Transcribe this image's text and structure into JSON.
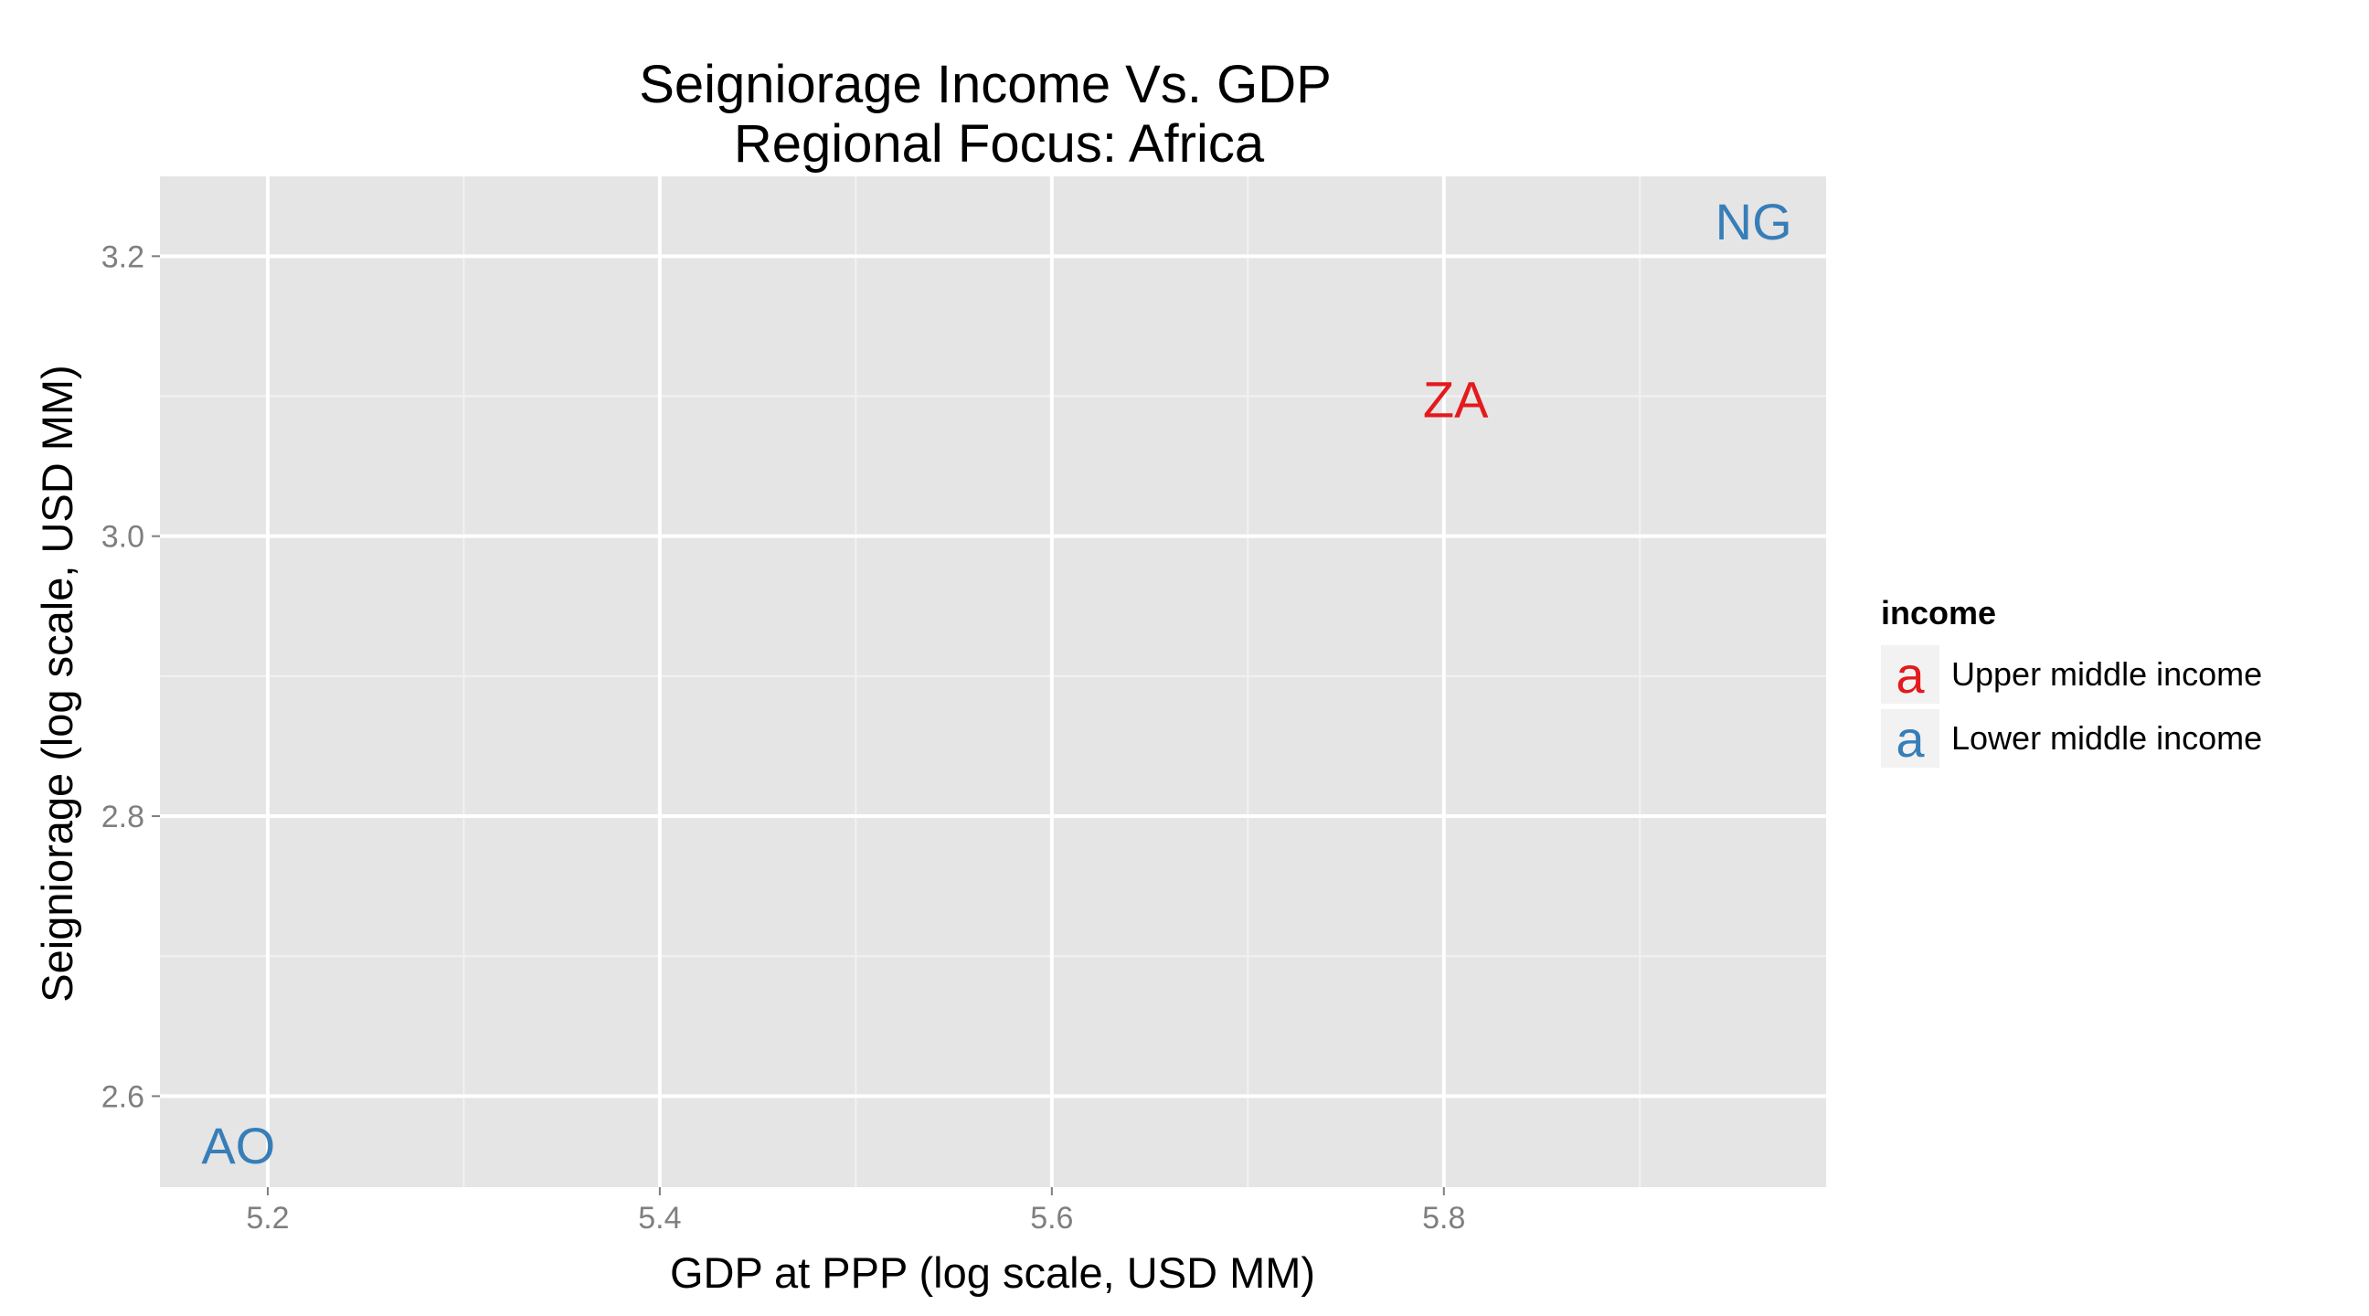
{
  "chart_data": {
    "type": "scatter",
    "title": "Seigniorage Income Vs. GDP",
    "subtitle": "Regional Focus: Africa",
    "xlabel": "GDP at PPP (log scale, USD MM)",
    "ylabel": "Seigniorage (log scale, USD MM)",
    "xlim": [
      5.145,
      5.995
    ],
    "ylim": [
      2.535,
      3.257
    ],
    "xticks": [
      "5.2",
      "5.4",
      "5.6",
      "5.8"
    ],
    "yticks": [
      "2.6",
      "2.8",
      "3.0",
      "3.2"
    ],
    "grid": true,
    "legend_position": "right",
    "legend": {
      "title": "income",
      "glyph": "a",
      "entries": [
        {
          "label": "Upper middle income",
          "color": "#e41a1c"
        },
        {
          "label": "Lower middle income",
          "color": "#377eb8"
        }
      ]
    },
    "points": [
      {
        "label": "AO",
        "x": 5.185,
        "y": 2.565,
        "group": "Lower middle income"
      },
      {
        "label": "ZA",
        "x": 5.806,
        "y": 3.098,
        "group": "Upper middle income"
      },
      {
        "label": "NG",
        "x": 5.958,
        "y": 3.225,
        "group": "Lower middle income"
      }
    ]
  }
}
